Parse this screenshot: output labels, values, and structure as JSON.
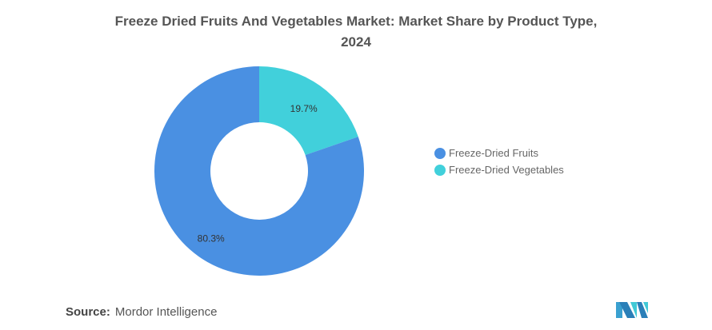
{
  "chart_data": {
    "type": "pie",
    "title": "Freeze Dried Fruits And Vegetables Market: Market Share by Product Type, 2024",
    "title_lines": [
      "Freeze Dried Fruits And Vegetables Market: Market Share by Product Type,",
      "2024"
    ],
    "donut": true,
    "slices": [
      {
        "label": "Freeze-Dried Vegetables",
        "value": 19.7,
        "display": "19.7%",
        "color": "#41d0db"
      },
      {
        "label": "Freeze-Dried Fruits",
        "value": 80.3,
        "display": "80.3%",
        "color": "#4a90e2"
      }
    ],
    "legend": {
      "placement": "right",
      "items": [
        {
          "label": "Freeze-Dried Fruits",
          "color": "#4a90e2"
        },
        {
          "label": "Freeze-Dried Vegetables",
          "color": "#41d0db"
        }
      ]
    }
  },
  "source": {
    "label": "Source:",
    "value": "Mordor Intelligence"
  }
}
